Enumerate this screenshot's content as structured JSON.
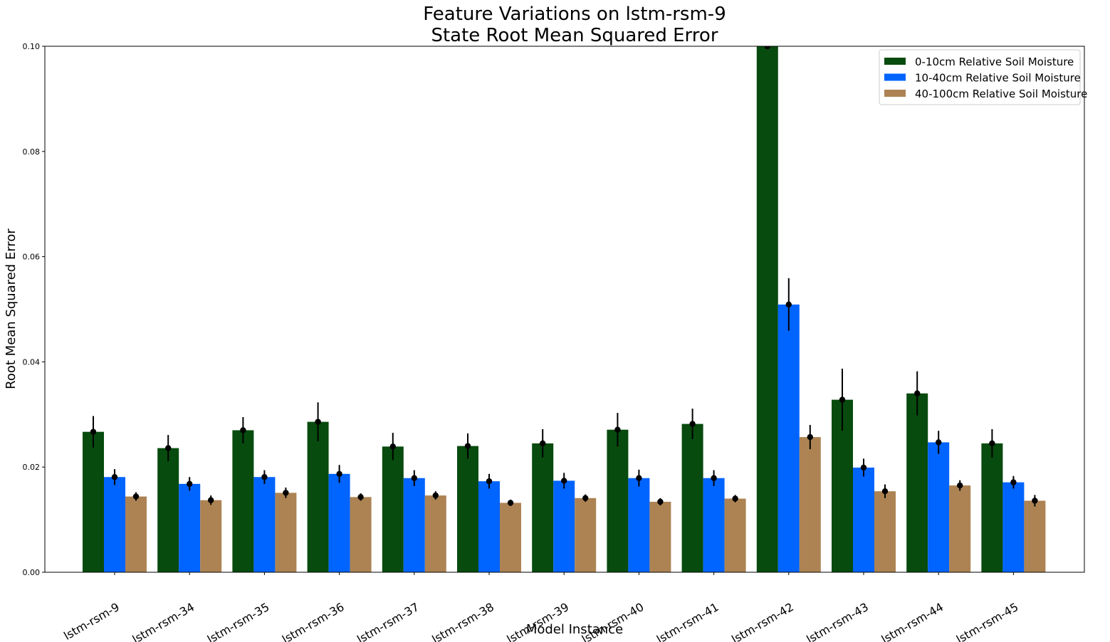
{
  "chart_data": {
    "type": "bar",
    "title_line1": "Feature Variations on lstm-rsm-9",
    "title_line2": "State Root Mean Squared Error",
    "xlabel": "Model Instance",
    "ylabel": "Root Mean Squared Error",
    "ylim": [
      0,
      0.1
    ],
    "yticks": [
      0.0,
      0.02,
      0.04,
      0.06,
      0.08,
      0.1
    ],
    "ytick_labels": [
      "0.00",
      "0.02",
      "0.04",
      "0.06",
      "0.08",
      "0.10"
    ],
    "grid": false,
    "legend_position": "top-right",
    "categories": [
      "lstm-rsm-9",
      "lstm-rsm-34",
      "lstm-rsm-35",
      "lstm-rsm-36",
      "lstm-rsm-37",
      "lstm-rsm-38",
      "lstm-rsm-39",
      "lstm-rsm-40",
      "lstm-rsm-41",
      "lstm-rsm-42",
      "lstm-rsm-43",
      "lstm-rsm-44",
      "lstm-rsm-45"
    ],
    "series": [
      {
        "name": "0-10cm Relative Soil Moisture",
        "color": "#074b0e",
        "values": [
          0.0267,
          0.0236,
          0.027,
          0.0286,
          0.0239,
          0.024,
          0.0245,
          0.0271,
          0.0282,
          0.1,
          0.0328,
          0.034,
          0.0245
        ],
        "errors": [
          0.003,
          0.0025,
          0.0025,
          0.0037,
          0.0026,
          0.0024,
          0.0027,
          0.0032,
          0.0029,
          0.0,
          0.0059,
          0.0042,
          0.0027
        ]
      },
      {
        "name": "10-40cm Relative Soil Moisture",
        "color": "#0064ff",
        "values": [
          0.0181,
          0.0168,
          0.0181,
          0.0187,
          0.0179,
          0.0173,
          0.0174,
          0.0179,
          0.0179,
          0.0509,
          0.0199,
          0.0247,
          0.0171
        ],
        "errors": [
          0.0015,
          0.0013,
          0.0013,
          0.0017,
          0.0015,
          0.0014,
          0.0015,
          0.0016,
          0.0015,
          0.005,
          0.0017,
          0.0022,
          0.0012
        ]
      },
      {
        "name": "40-100cm Relative Soil Moisture",
        "color": "#ad8353",
        "values": [
          0.0144,
          0.0137,
          0.0151,
          0.0143,
          0.0146,
          0.0132,
          0.0141,
          0.0134,
          0.014,
          0.0257,
          0.0154,
          0.0165,
          0.0136
        ],
        "errors": [
          0.0008,
          0.0009,
          0.001,
          0.0007,
          0.0008,
          0.0006,
          0.0007,
          0.0007,
          0.0007,
          0.0023,
          0.0013,
          0.001,
          0.0011
        ]
      }
    ]
  }
}
